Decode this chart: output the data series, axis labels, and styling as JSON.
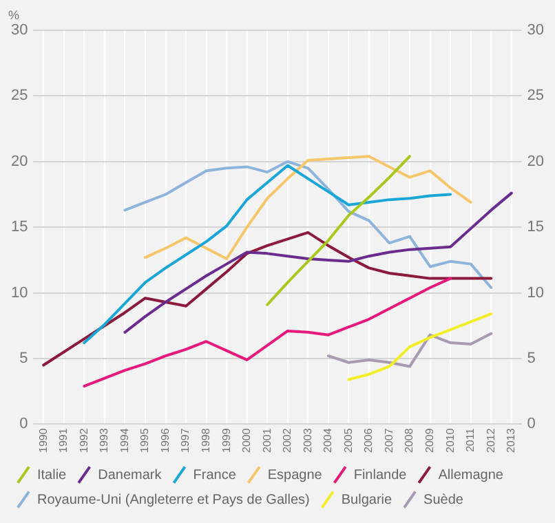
{
  "chart_data": {
    "type": "line",
    "ylabel": "%",
    "categories": [
      "1990",
      "1991",
      "1992",
      "1993",
      "1994",
      "1995",
      "1996",
      "1997",
      "1998",
      "1999",
      "2000",
      "2001",
      "2002",
      "2003",
      "2004",
      "2005",
      "2006",
      "2007",
      "2008",
      "2009",
      "2010",
      "2011",
      "2012",
      "2013"
    ],
    "series": [
      {
        "name": "Italie",
        "color": "#a8c81e",
        "values": [
          null,
          null,
          null,
          null,
          null,
          null,
          null,
          null,
          null,
          null,
          null,
          9.1,
          10.8,
          12.4,
          14.0,
          15.9,
          17.3,
          18.8,
          20.4,
          null,
          null,
          null,
          null,
          null
        ]
      },
      {
        "name": "Danemark",
        "color": "#6a2c8e",
        "values": [
          null,
          null,
          null,
          null,
          7.0,
          8.2,
          9.3,
          10.3,
          11.3,
          12.2,
          13.1,
          13.0,
          12.8,
          12.6,
          12.5,
          12.4,
          12.8,
          13.1,
          13.3,
          13.4,
          13.5,
          14.9,
          16.3,
          17.6
        ]
      },
      {
        "name": "France",
        "color": "#1aa7d8",
        "values": [
          null,
          null,
          6.2,
          7.6,
          9.2,
          10.8,
          11.9,
          12.9,
          13.9,
          15.1,
          17.1,
          18.4,
          19.7,
          18.7,
          17.7,
          16.7,
          16.9,
          17.1,
          17.2,
          17.4,
          17.5,
          null,
          null,
          null
        ]
      },
      {
        "name": "Espagne",
        "color": "#f5c76a",
        "values": [
          null,
          null,
          null,
          null,
          null,
          12.7,
          13.4,
          14.2,
          13.4,
          12.6,
          15.0,
          17.2,
          18.7,
          20.1,
          20.2,
          20.3,
          20.4,
          19.6,
          18.8,
          19.3,
          18.0,
          16.9,
          null,
          null
        ]
      },
      {
        "name": "Finlande",
        "color": "#e6197c",
        "values": [
          null,
          null,
          2.9,
          3.5,
          4.1,
          4.6,
          5.2,
          5.7,
          6.3,
          5.6,
          4.9,
          6.0,
          7.1,
          7.0,
          6.8,
          7.4,
          8.0,
          8.8,
          9.6,
          10.4,
          11.1,
          null,
          null,
          null
        ]
      },
      {
        "name": "Allemagne",
        "color": "#8b1a3c",
        "values": [
          4.5,
          5.5,
          6.5,
          7.5,
          8.5,
          9.6,
          9.3,
          9.0,
          10.3,
          11.6,
          13.0,
          13.6,
          14.1,
          14.6,
          13.6,
          12.7,
          11.9,
          11.5,
          11.3,
          11.1,
          11.1,
          11.1,
          11.1,
          null
        ]
      },
      {
        "name": "Royaume-Uni (Angleterre et Pays de Galles)",
        "color": "#8fb4dc",
        "values": [
          null,
          null,
          null,
          null,
          16.3,
          16.9,
          17.5,
          18.4,
          19.3,
          19.5,
          19.6,
          19.2,
          20.0,
          19.5,
          17.9,
          16.2,
          15.5,
          13.8,
          14.3,
          12.0,
          12.4,
          12.2,
          10.4,
          null
        ]
      },
      {
        "name": "Bulgarie",
        "color": "#f2ee2a",
        "values": [
          null,
          null,
          null,
          null,
          null,
          null,
          null,
          null,
          null,
          null,
          null,
          null,
          null,
          null,
          null,
          3.4,
          3.8,
          4.4,
          5.9,
          6.6,
          7.2,
          7.8,
          8.4,
          null
        ]
      },
      {
        "name": "Suède",
        "color": "#a89ab0",
        "values": [
          null,
          null,
          null,
          null,
          null,
          null,
          null,
          null,
          null,
          null,
          null,
          null,
          null,
          null,
          5.2,
          4.7,
          4.9,
          4.7,
          4.4,
          6.8,
          6.2,
          6.1,
          6.9,
          null
        ]
      }
    ],
    "ylim": [
      0,
      30
    ],
    "yticks": [
      0,
      5,
      10,
      15,
      20,
      25,
      30
    ],
    "y2lim": [
      0,
      30
    ],
    "y2ticks": [
      0,
      5,
      10,
      15,
      20,
      25,
      30
    ],
    "grid": true,
    "legend": "bottom",
    "marker": "none",
    "line_style": "solid"
  }
}
